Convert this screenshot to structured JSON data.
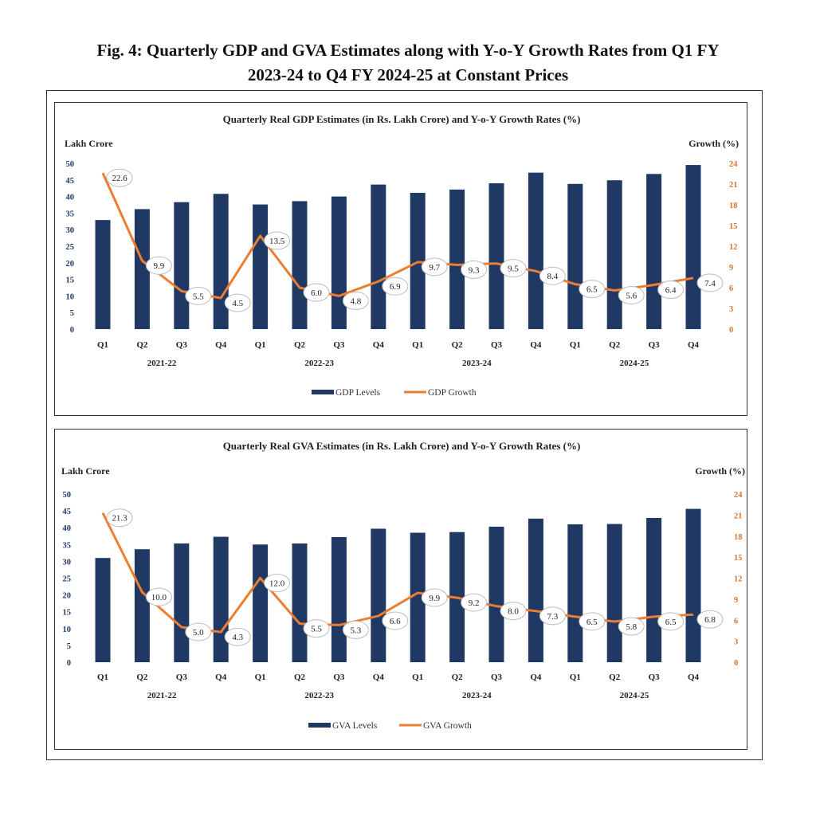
{
  "figure": {
    "title_line1": "Fig. 4: Quarterly GDP and GVA Estimates along with Y-o-Y Growth Rates from Q1 FY",
    "title_line2": "2023-24 to Q4 FY 2024-25 at Constant Prices"
  },
  "colors": {
    "bar": "#1f3864",
    "line": "#ed7d31",
    "right_axis": "#d9772d"
  },
  "chart_data": [
    {
      "type": "bar",
      "title": "Quarterly Real GDP Estimates (in Rs. Lakh Crore) and Y-o-Y Growth Rates (%)",
      "ylabel_left": "Lakh Crore",
      "ylabel_right": "Growth (%)",
      "left_ticks": [
        "50",
        "45",
        "40",
        "35",
        "30",
        "25",
        "20",
        "15",
        "10",
        "5",
        "0"
      ],
      "right_ticks": [
        "24",
        "21",
        "18",
        "15",
        "12",
        "9",
        "6",
        "3",
        "0"
      ],
      "ylim_left": [
        0,
        50
      ],
      "ylim_right": [
        0,
        24
      ],
      "categories": [
        "Q1",
        "Q2",
        "Q3",
        "Q4",
        "Q1",
        "Q2",
        "Q3",
        "Q4",
        "Q1",
        "Q2",
        "Q3",
        "Q4",
        "Q1",
        "Q2",
        "Q3",
        "Q4"
      ],
      "years": [
        "2021-22",
        "2022-23",
        "2023-24",
        "2024-25"
      ],
      "series": [
        {
          "name": "GDP Levels",
          "type": "bar",
          "values": [
            32.9,
            36.2,
            38.3,
            40.8,
            37.6,
            38.6,
            40.0,
            43.6,
            41.1,
            42.1,
            44.0,
            47.2,
            43.8,
            44.9,
            46.8,
            49.5
          ]
        },
        {
          "name": "GDP Growth",
          "type": "line",
          "values": [
            22.6,
            9.9,
            5.5,
            4.5,
            13.5,
            6.0,
            4.8,
            6.9,
            9.7,
            9.3,
            9.5,
            8.4,
            6.5,
            5.6,
            6.4,
            7.4
          ],
          "labels": [
            "22.6",
            "9.9",
            "5.5",
            "4.5",
            "13.5",
            "6.0",
            "4.8",
            "6.9",
            "9.7",
            "9.3",
            "9.5",
            "8.4",
            "6.5",
            "5.6",
            "6.4",
            "7.4"
          ]
        }
      ],
      "legend": [
        "GDP Levels",
        "GDP Growth"
      ]
    },
    {
      "type": "bar",
      "title": "Quarterly Real GVA Estimates (in Rs. Lakh Crore) and Y-o-Y Growth Rates (%)",
      "ylabel_left": "Lakh Crore",
      "ylabel_right": "Growth (%)",
      "left_ticks": [
        "50",
        "45",
        "40",
        "35",
        "30",
        "25",
        "20",
        "15",
        "10",
        "5",
        "0"
      ],
      "right_ticks": [
        "24",
        "21",
        "18",
        "15",
        "12",
        "9",
        "6",
        "3",
        "0"
      ],
      "ylim_left": [
        0,
        50
      ],
      "ylim_right": [
        0,
        24
      ],
      "categories": [
        "Q1",
        "Q2",
        "Q3",
        "Q4",
        "Q1",
        "Q2",
        "Q3",
        "Q4",
        "Q1",
        "Q2",
        "Q3",
        "Q4",
        "Q1",
        "Q2",
        "Q3",
        "Q4"
      ],
      "years": [
        "2021-22",
        "2022-23",
        "2023-24",
        "2024-25"
      ],
      "series": [
        {
          "name": "GVA Levels",
          "type": "bar",
          "values": [
            31.0,
            33.6,
            35.3,
            37.3,
            35.0,
            35.3,
            37.2,
            39.7,
            38.5,
            38.7,
            40.3,
            42.7,
            41.0,
            41.1,
            42.9,
            45.6
          ]
        },
        {
          "name": "GVA Growth",
          "type": "line",
          "values": [
            21.3,
            10.0,
            5.0,
            4.3,
            12.0,
            5.5,
            5.3,
            6.6,
            9.9,
            9.2,
            8.0,
            7.3,
            6.5,
            5.8,
            6.5,
            6.8
          ],
          "labels": [
            "21.3",
            "10.0",
            "5.0",
            "4.3",
            "12.0",
            "5.5",
            "5.3",
            "6.6",
            "9.9",
            "9.2",
            "8.0",
            "7.3",
            "6.5",
            "5.8",
            "6.5",
            "6.8"
          ]
        }
      ],
      "legend": [
        "GVA Levels",
        "GVA Growth"
      ]
    }
  ]
}
